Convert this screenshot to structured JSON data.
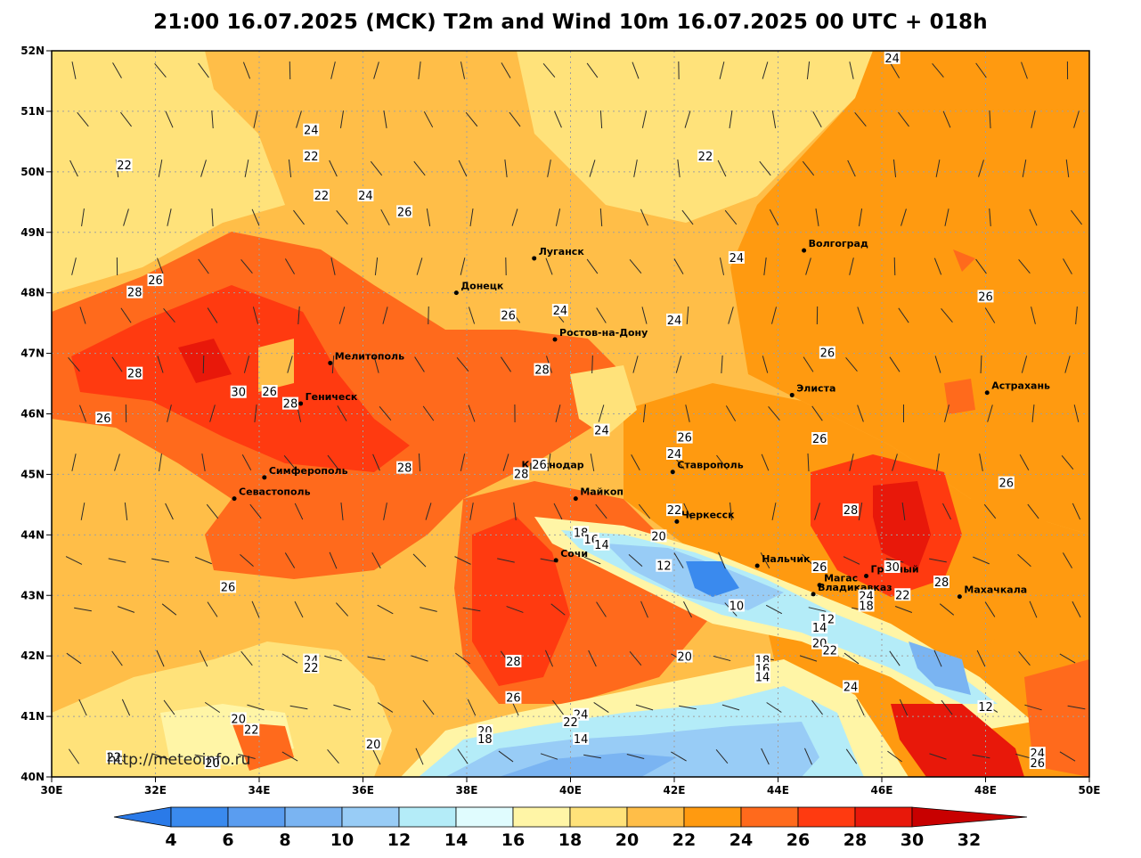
{
  "title": "21:00 16.07.2025 (MCK) T2m and Wind 10m 16.07.2025 00 UTC + 018h",
  "watermark": "http://meteoinfo.ru",
  "lat_labels": [
    "52N",
    "51N",
    "50N",
    "49N",
    "48N",
    "47N",
    "46N",
    "45N",
    "44N",
    "43N",
    "42N",
    "41N",
    "40N"
  ],
  "lon_labels": [
    "30E",
    "32E",
    "34E",
    "36E",
    "38E",
    "40E",
    "42E",
    "44E",
    "46E",
    "48E",
    "50E"
  ],
  "colorbar": {
    "ticks": [
      "4",
      "6",
      "8",
      "10",
      "12",
      "14",
      "16",
      "18",
      "20",
      "22",
      "24",
      "26",
      "28",
      "30",
      "32"
    ],
    "colors": [
      "#2a7ae8",
      "#3a8aee",
      "#5a9df0",
      "#7ab4f2",
      "#98ccf6",
      "#b4ecf8",
      "#e0fcfe",
      "#fff5a6",
      "#ffe27a",
      "#ffbe48",
      "#ff9a10",
      "#ff6a1c",
      "#ff3a10",
      "#e8180a",
      "#c80000"
    ]
  },
  "cities": [
    {
      "name": "Волгоград",
      "lon": 44.5,
      "lat": 48.7
    },
    {
      "name": "Луганск",
      "lon": 39.3,
      "lat": 48.57
    },
    {
      "name": "Донецк",
      "lon": 37.8,
      "lat": 48.0
    },
    {
      "name": "Ростов-на-Дону",
      "lon": 39.7,
      "lat": 47.23
    },
    {
      "name": "Мелитополь",
      "lon": 35.37,
      "lat": 46.84
    },
    {
      "name": "Геническ",
      "lon": 34.8,
      "lat": 46.17
    },
    {
      "name": "Элиста",
      "lon": 44.27,
      "lat": 46.31
    },
    {
      "name": "Астрахань",
      "lon": 48.03,
      "lat": 46.35
    },
    {
      "name": "Симферополь",
      "lon": 34.1,
      "lat": 44.95
    },
    {
      "name": "Севастополь",
      "lon": 33.52,
      "lat": 44.6
    },
    {
      "name": "Краснодар",
      "lon": 38.97,
      "lat": 45.04
    },
    {
      "name": "Ставрополь",
      "lon": 41.97,
      "lat": 45.04
    },
    {
      "name": "Майкоп",
      "lon": 40.1,
      "lat": 44.6
    },
    {
      "name": "Черкесск",
      "lon": 42.05,
      "lat": 44.22
    },
    {
      "name": "Сочи",
      "lon": 39.72,
      "lat": 43.58
    },
    {
      "name": "Нальчик",
      "lon": 43.6,
      "lat": 43.49
    },
    {
      "name": "Магас",
      "lon": 44.8,
      "lat": 43.17
    },
    {
      "name": "Грозный",
      "lon": 45.7,
      "lat": 43.32
    },
    {
      "name": "Владикавказ",
      "lon": 44.68,
      "lat": 43.02
    },
    {
      "name": "Махачкала",
      "lon": 47.5,
      "lat": 42.98
    }
  ],
  "contour_labels": [
    {
      "t": "24",
      "lon": 46.2,
      "lat": 51.87
    },
    {
      "t": "22",
      "lon": 31.4,
      "lat": 50.1
    },
    {
      "t": "24",
      "lon": 35.0,
      "lat": 50.68
    },
    {
      "t": "22",
      "lon": 35.0,
      "lat": 50.25
    },
    {
      "t": "22",
      "lon": 35.2,
      "lat": 49.6
    },
    {
      "t": "24",
      "lon": 36.05,
      "lat": 49.6
    },
    {
      "t": "26",
      "lon": 36.8,
      "lat": 49.33
    },
    {
      "t": "22",
      "lon": 42.6,
      "lat": 50.25
    },
    {
      "t": "24",
      "lon": 43.2,
      "lat": 48.57
    },
    {
      "t": "26",
      "lon": 32.0,
      "lat": 48.2
    },
    {
      "t": "28",
      "lon": 31.6,
      "lat": 48.0
    },
    {
      "t": "26",
      "lon": 38.8,
      "lat": 47.62
    },
    {
      "t": "24",
      "lon": 39.8,
      "lat": 47.7
    },
    {
      "t": "24",
      "lon": 42.0,
      "lat": 47.54
    },
    {
      "t": "26",
      "lon": 48.0,
      "lat": 47.93
    },
    {
      "t": "26",
      "lon": 44.95,
      "lat": 47.0
    },
    {
      "t": "28",
      "lon": 31.6,
      "lat": 46.66
    },
    {
      "t": "30",
      "lon": 33.6,
      "lat": 46.35
    },
    {
      "t": "26",
      "lon": 34.2,
      "lat": 46.36
    },
    {
      "t": "28",
      "lon": 34.6,
      "lat": 46.16
    },
    {
      "t": "28",
      "lon": 39.45,
      "lat": 46.72
    },
    {
      "t": "26",
      "lon": 31.0,
      "lat": 45.92
    },
    {
      "t": "24",
      "lon": 40.6,
      "lat": 45.72
    },
    {
      "t": "26",
      "lon": 42.2,
      "lat": 45.6
    },
    {
      "t": "26",
      "lon": 44.8,
      "lat": 45.58
    },
    {
      "t": "24",
      "lon": 42.0,
      "lat": 45.33
    },
    {
      "t": "28",
      "lon": 36.8,
      "lat": 45.1
    },
    {
      "t": "26",
      "lon": 39.4,
      "lat": 45.15
    },
    {
      "t": "28",
      "lon": 39.05,
      "lat": 45.0
    },
    {
      "t": "26",
      "lon": 48.4,
      "lat": 44.85
    },
    {
      "t": "22",
      "lon": 42.0,
      "lat": 44.4
    },
    {
      "t": "28",
      "lon": 45.4,
      "lat": 44.4
    },
    {
      "t": "18",
      "lon": 40.2,
      "lat": 44.03
    },
    {
      "t": "16",
      "lon": 40.4,
      "lat": 43.92
    },
    {
      "t": "14",
      "lon": 40.6,
      "lat": 43.83
    },
    {
      "t": "20",
      "lon": 41.7,
      "lat": 43.97
    },
    {
      "t": "12",
      "lon": 41.8,
      "lat": 43.48
    },
    {
      "t": "26",
      "lon": 44.8,
      "lat": 43.46
    },
    {
      "t": "30",
      "lon": 46.2,
      "lat": 43.46
    },
    {
      "t": "26",
      "lon": 33.4,
      "lat": 43.13
    },
    {
      "t": "24",
      "lon": 45.7,
      "lat": 42.98
    },
    {
      "t": "22",
      "lon": 46.4,
      "lat": 43.0
    },
    {
      "t": "28",
      "lon": 47.15,
      "lat": 43.21
    },
    {
      "t": "10",
      "lon": 43.2,
      "lat": 42.82
    },
    {
      "t": "18",
      "lon": 45.7,
      "lat": 42.82
    },
    {
      "t": "12",
      "lon": 44.95,
      "lat": 42.6
    },
    {
      "t": "14",
      "lon": 44.8,
      "lat": 42.46
    },
    {
      "t": "20",
      "lon": 44.8,
      "lat": 42.2
    },
    {
      "t": "22",
      "lon": 45.0,
      "lat": 42.08
    },
    {
      "t": "28",
      "lon": 38.9,
      "lat": 41.9
    },
    {
      "t": "20",
      "lon": 42.2,
      "lat": 41.98
    },
    {
      "t": "18",
      "lon": 43.7,
      "lat": 41.92
    },
    {
      "t": "16",
      "lon": 43.7,
      "lat": 41.78
    },
    {
      "t": "14",
      "lon": 43.7,
      "lat": 41.64
    },
    {
      "t": "24",
      "lon": 35.0,
      "lat": 41.92
    },
    {
      "t": "22",
      "lon": 35.0,
      "lat": 41.8
    },
    {
      "t": "24",
      "lon": 45.4,
      "lat": 41.48
    },
    {
      "t": "26",
      "lon": 38.9,
      "lat": 41.3
    },
    {
      "t": "24",
      "lon": 40.2,
      "lat": 41.02
    },
    {
      "t": "22",
      "lon": 40.0,
      "lat": 40.9
    },
    {
      "t": "20",
      "lon": 33.6,
      "lat": 40.95
    },
    {
      "t": "22",
      "lon": 33.85,
      "lat": 40.77
    },
    {
      "t": "20",
      "lon": 38.35,
      "lat": 40.75
    },
    {
      "t": "18",
      "lon": 38.35,
      "lat": 40.62
    },
    {
      "t": "14",
      "lon": 40.2,
      "lat": 40.62
    },
    {
      "t": "20",
      "lon": 36.2,
      "lat": 40.53
    },
    {
      "t": "12",
      "lon": 48.0,
      "lat": 41.15
    },
    {
      "t": "22",
      "lon": 31.2,
      "lat": 40.32
    },
    {
      "t": "20",
      "lon": 33.1,
      "lat": 40.22
    },
    {
      "t": "24",
      "lon": 49.0,
      "lat": 40.38
    },
    {
      "t": "26",
      "lon": 49.0,
      "lat": 40.22
    }
  ]
}
